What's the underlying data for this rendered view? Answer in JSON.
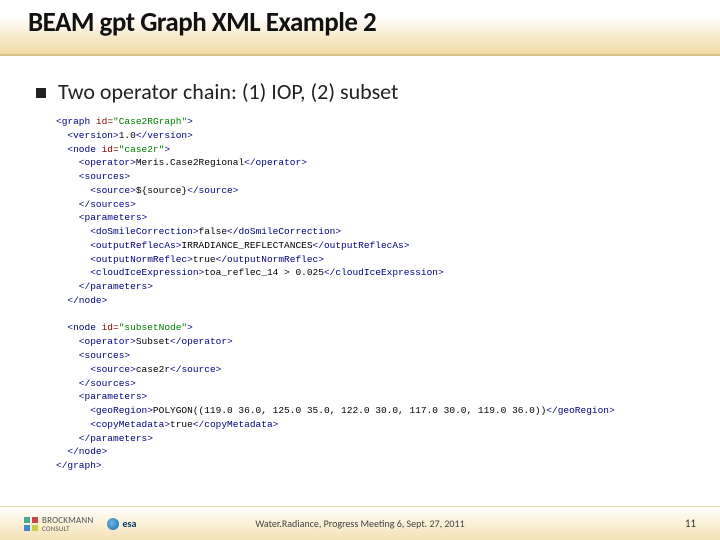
{
  "title": "BEAM gpt Graph XML Example 2",
  "bullet": "Two operator chain: (1) IOP, (2) subset",
  "code_lines": [
    [
      [
        "tag",
        "<graph "
      ],
      [
        "attr",
        "id="
      ],
      [
        "str",
        "\"Case2RGraph\""
      ],
      [
        "tag",
        ">"
      ]
    ],
    [
      [
        "tag",
        "  <version>"
      ],
      [
        "text",
        "1.0"
      ],
      [
        "tag",
        "</version>"
      ]
    ],
    [
      [
        "tag",
        "  <node "
      ],
      [
        "attr",
        "id="
      ],
      [
        "str",
        "\"case2r\""
      ],
      [
        "tag",
        ">"
      ]
    ],
    [
      [
        "tag",
        "    <operator>"
      ],
      [
        "text",
        "Meris.Case2Regional"
      ],
      [
        "tag",
        "</operator>"
      ]
    ],
    [
      [
        "tag",
        "    <sources>"
      ]
    ],
    [
      [
        "tag",
        "      <source>"
      ],
      [
        "text",
        "${source}"
      ],
      [
        "tag",
        "</source>"
      ]
    ],
    [
      [
        "tag",
        "    </sources>"
      ]
    ],
    [
      [
        "tag",
        "    <parameters>"
      ]
    ],
    [
      [
        "tag",
        "      <doSmileCorrection>"
      ],
      [
        "text",
        "false"
      ],
      [
        "tag",
        "</doSmileCorrection>"
      ]
    ],
    [
      [
        "tag",
        "      <outputReflecAs>"
      ],
      [
        "text",
        "IRRADIANCE_REFLECTANCES"
      ],
      [
        "tag",
        "</outputReflecAs>"
      ]
    ],
    [
      [
        "tag",
        "      <outputNormReflec>"
      ],
      [
        "text",
        "true"
      ],
      [
        "tag",
        "</outputNormReflec>"
      ]
    ],
    [
      [
        "tag",
        "      <cloudIceExpression>"
      ],
      [
        "text",
        "toa_reflec_14 > 0.025"
      ],
      [
        "tag",
        "</cloudIceExpression>"
      ]
    ],
    [
      [
        "tag",
        "    </parameters>"
      ]
    ],
    [
      [
        "tag",
        "  </node>"
      ]
    ],
    [
      [
        "text",
        " "
      ]
    ],
    [
      [
        "tag",
        "  <node "
      ],
      [
        "attr",
        "id="
      ],
      [
        "str",
        "\"subsetNode\""
      ],
      [
        "tag",
        ">"
      ]
    ],
    [
      [
        "tag",
        "    <operator>"
      ],
      [
        "text",
        "Subset"
      ],
      [
        "tag",
        "</operator>"
      ]
    ],
    [
      [
        "tag",
        "    <sources>"
      ]
    ],
    [
      [
        "tag",
        "      <source>"
      ],
      [
        "text",
        "case2r"
      ],
      [
        "tag",
        "</source>"
      ]
    ],
    [
      [
        "tag",
        "    </sources>"
      ]
    ],
    [
      [
        "tag",
        "    <parameters>"
      ]
    ],
    [
      [
        "tag",
        "      <geoRegion>"
      ],
      [
        "text",
        "POLYGON((119.0 36.0, 125.0 35.0, 122.0 30.0, 117.0 30.0, 119.0 36.0))"
      ],
      [
        "tag",
        "</geoRegion>"
      ]
    ],
    [
      [
        "tag",
        "      <copyMetadata>"
      ],
      [
        "text",
        "true"
      ],
      [
        "tag",
        "</copyMetadata>"
      ]
    ],
    [
      [
        "tag",
        "    </parameters>"
      ]
    ],
    [
      [
        "tag",
        "  </node>"
      ]
    ],
    [
      [
        "tag",
        "</graph>"
      ]
    ]
  ],
  "footer": {
    "logo1_text": "BROCKMANN",
    "logo1_sub": "CONSULT",
    "esa_text": "esa",
    "center": "Water.Radiance, Progress Meeting 6,    Sept. 27, 2011",
    "page": "11"
  },
  "colors": {
    "tag": "#000080",
    "attr": "#800000",
    "str": "#008000",
    "text": "#000000"
  }
}
